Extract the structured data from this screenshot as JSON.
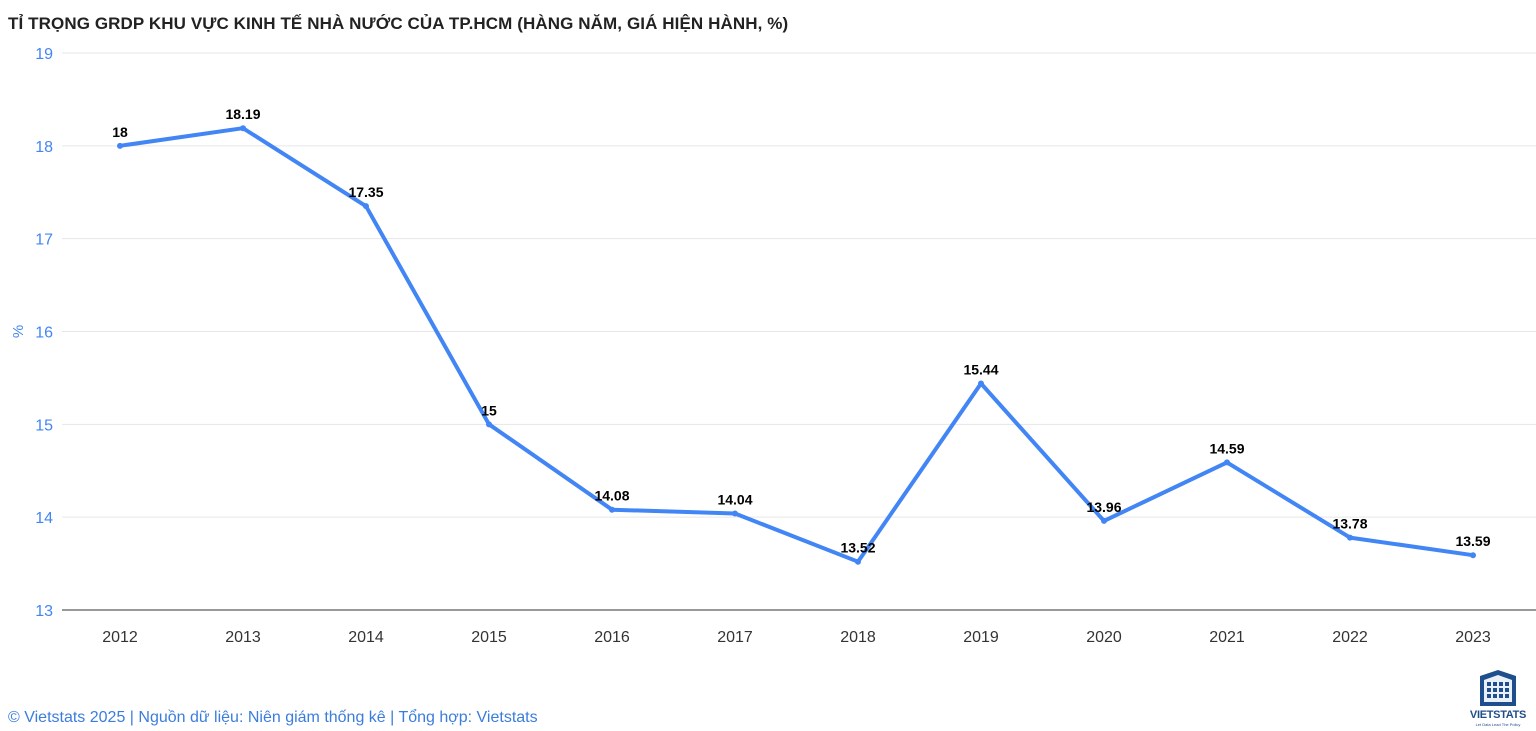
{
  "chart_data": {
    "type": "line",
    "title": "TỈ TRỌNG GRDP KHU VỰC KINH TẾ NHÀ NƯỚC CỦA TP.HCM (HÀNG NĂM, GIÁ HIỆN HÀNH, %)",
    "xlabel": "",
    "ylabel": "%",
    "categories": [
      "2012",
      "2013",
      "2014",
      "2015",
      "2016",
      "2017",
      "2018",
      "2019",
      "2020",
      "2021",
      "2022",
      "2023"
    ],
    "series": [
      {
        "name": "",
        "values": [
          18,
          18.19,
          17.35,
          15,
          14.08,
          14.04,
          13.52,
          15.44,
          13.96,
          14.59,
          13.78,
          13.59
        ],
        "labels": [
          "18",
          "18.19",
          "17.35",
          "15",
          "14.08",
          "14.04",
          "13.52",
          "15.44",
          "13.96",
          "14.59",
          "13.78",
          "13.59"
        ]
      }
    ],
    "ylim": [
      13,
      19
    ],
    "yticks": [
      "13",
      "14",
      "15",
      "16",
      "17",
      "18",
      "19"
    ],
    "grid": true,
    "legend": "none",
    "line_color": "#4285f4",
    "axis_label_color": "#4285f4"
  },
  "footer": {
    "credit": "© Vietstats 2025 | Nguồn dữ liệu: Niên giám thống kê | Tổng hợp: Vietstats"
  },
  "logo": {
    "name": "VIETSTATS",
    "tagline": "Let Data Lead The Policy",
    "icon": "building-grid-icon",
    "color": "#1f4e8c"
  }
}
